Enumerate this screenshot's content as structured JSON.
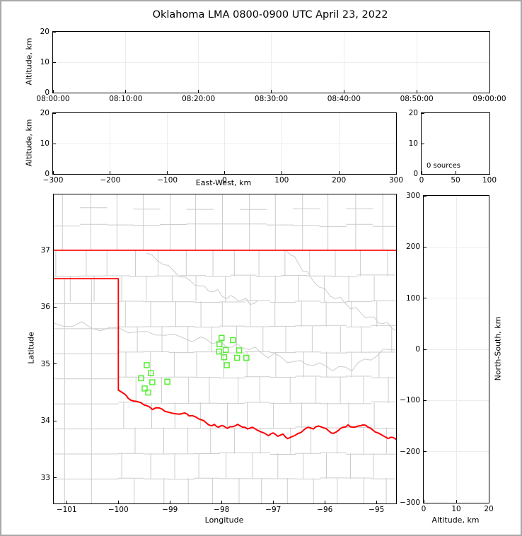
{
  "title": "Oklahoma LMA 0800-0900 UTC April 23, 2022",
  "colors": {
    "station_marker": "#55ee33",
    "state_border": "#ff0000",
    "county_line": "#cccccc",
    "gridline": "#ececec",
    "axis": "#000000",
    "page_border": "#a8a8a8"
  },
  "chart_data": [
    {
      "id": "time_height",
      "type": "scatter",
      "xlabel": "",
      "ylabel": "Altitude, km",
      "ylim": [
        0,
        20
      ],
      "yticks": [
        0,
        10,
        20
      ],
      "xticklabels": [
        "08:00:00",
        "08:10:00",
        "08:20:00",
        "08:30:00",
        "08:40:00",
        "08:50:00",
        "09:00:00"
      ],
      "xtickfractions": [
        0,
        0.16667,
        0.33333,
        0.5,
        0.66667,
        0.83333,
        1
      ],
      "grid": true,
      "points": []
    },
    {
      "id": "ew_height",
      "type": "scatter",
      "xlabel": "East-West, km",
      "ylabel": "Altitude, km",
      "xlim": [
        -300,
        300
      ],
      "xticks": [
        -300,
        -200,
        -100,
        0,
        100,
        200,
        300
      ],
      "ylim": [
        0,
        20
      ],
      "yticks": [
        0,
        10,
        20
      ],
      "grid": true,
      "points": []
    },
    {
      "id": "source_histogram",
      "type": "line",
      "annotation": "0 sources",
      "xlim": [
        0,
        100
      ],
      "xticks": [
        0,
        50,
        100
      ],
      "ylim": [
        0,
        20
      ],
      "yticks": [
        0,
        10,
        20
      ],
      "grid": false,
      "points": []
    },
    {
      "id": "map",
      "type": "scatter",
      "xlabel": "Longitude",
      "ylabel": "Latitude",
      "xlim": [
        -101.25,
        -94.62
      ],
      "xticks": [
        -101,
        -100,
        -99,
        -98,
        -97,
        -96,
        -95
      ],
      "ylim": [
        32.55,
        37.98
      ],
      "yticks": [
        33,
        34,
        35,
        36,
        37
      ],
      "grid": false,
      "stations": [
        [
          -99.45,
          34.98
        ],
        [
          -99.37,
          34.84
        ],
        [
          -99.56,
          34.75
        ],
        [
          -99.34,
          34.68
        ],
        [
          -99.05,
          34.69
        ],
        [
          -99.49,
          34.57
        ],
        [
          -99.42,
          34.5
        ],
        [
          -98.0,
          35.46
        ],
        [
          -97.78,
          35.42
        ],
        [
          -98.04,
          35.35
        ],
        [
          -97.92,
          35.25
        ],
        [
          -98.05,
          35.22
        ],
        [
          -97.66,
          35.24
        ],
        [
          -97.95,
          35.12
        ],
        [
          -97.7,
          35.11
        ],
        [
          -97.52,
          35.11
        ],
        [
          -97.9,
          34.98
        ]
      ],
      "state_border": {
        "north": [
          [
            -101.25,
            37.0
          ],
          [
            -94.62,
            37.0
          ]
        ],
        "panhandle": [
          [
            -101.25,
            36.5
          ],
          [
            -100.0,
            36.5
          ],
          [
            -100.0,
            34.54
          ]
        ],
        "red_river": [
          [
            -100.0,
            34.54
          ],
          [
            -99.89,
            34.48
          ],
          [
            -99.81,
            34.4
          ],
          [
            -99.7,
            34.35
          ],
          [
            -99.56,
            34.32
          ],
          [
            -99.45,
            34.27
          ],
          [
            -99.34,
            34.2
          ],
          [
            -99.21,
            34.23
          ],
          [
            -99.1,
            34.17
          ],
          [
            -98.93,
            34.13
          ],
          [
            -98.8,
            34.12
          ],
          [
            -98.71,
            34.14
          ],
          [
            -98.63,
            34.09
          ],
          [
            -98.5,
            34.07
          ],
          [
            -98.39,
            34.02
          ],
          [
            -98.3,
            33.97
          ],
          [
            -98.22,
            33.92
          ],
          [
            -98.14,
            33.94
          ],
          [
            -98.06,
            33.89
          ],
          [
            -97.98,
            33.92
          ],
          [
            -97.89,
            33.87
          ],
          [
            -97.78,
            33.9
          ],
          [
            -97.69,
            33.94
          ],
          [
            -97.59,
            33.89
          ],
          [
            -97.5,
            33.86
          ],
          [
            -97.4,
            33.89
          ],
          [
            -97.31,
            33.84
          ],
          [
            -97.18,
            33.79
          ],
          [
            -97.09,
            33.74
          ],
          [
            -97.0,
            33.79
          ],
          [
            -96.91,
            33.73
          ],
          [
            -96.81,
            33.77
          ],
          [
            -96.72,
            33.69
          ],
          [
            -96.62,
            33.73
          ],
          [
            -96.52,
            33.78
          ],
          [
            -96.41,
            33.84
          ],
          [
            -96.32,
            33.89
          ],
          [
            -96.22,
            33.86
          ],
          [
            -96.12,
            33.91
          ],
          [
            -96.03,
            33.88
          ],
          [
            -95.93,
            33.83
          ],
          [
            -95.84,
            33.78
          ],
          [
            -95.74,
            33.83
          ],
          [
            -95.65,
            33.89
          ],
          [
            -95.55,
            33.93
          ],
          [
            -95.45,
            33.89
          ],
          [
            -95.36,
            33.91
          ],
          [
            -95.26,
            33.93
          ],
          [
            -95.16,
            33.89
          ],
          [
            -95.07,
            33.84
          ],
          [
            -94.97,
            33.79
          ],
          [
            -94.87,
            33.74
          ],
          [
            -94.77,
            33.69
          ],
          [
            -94.68,
            33.71
          ],
          [
            -94.6,
            33.66
          ]
        ]
      },
      "county_grid": {
        "row_step": 0.445,
        "col_step": 0.49
      }
    },
    {
      "id": "ns_height",
      "type": "scatter",
      "xlabel": "Altitude, km",
      "ylabel": "North-South, km",
      "xlim": [
        0,
        20
      ],
      "xticks": [
        0,
        10,
        20
      ],
      "ylim": [
        -300,
        300
      ],
      "yticks": [
        -300,
        -200,
        -100,
        0,
        100,
        200,
        300
      ],
      "grid": true,
      "points": []
    }
  ]
}
